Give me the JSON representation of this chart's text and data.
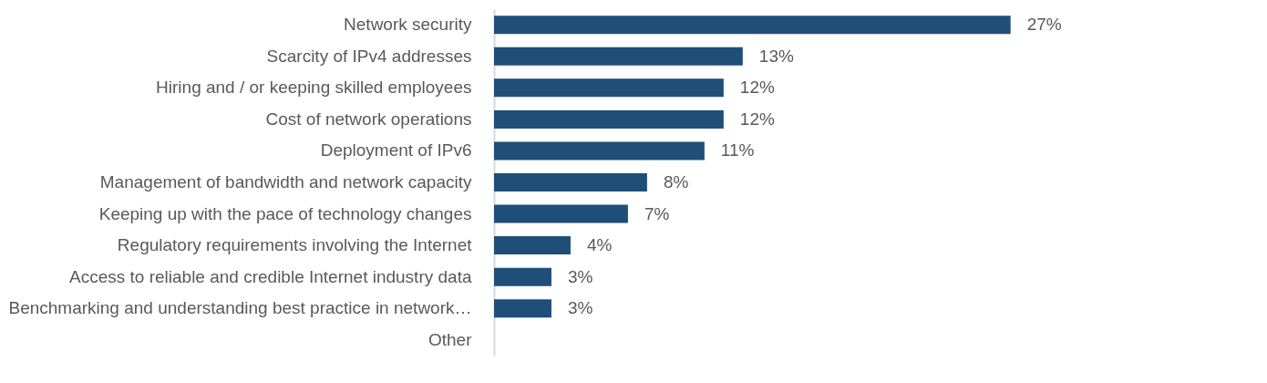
{
  "chart_data": {
    "type": "bar",
    "orientation": "horizontal",
    "categories": [
      "Network security",
      "Scarcity of IPv4 addresses",
      "Hiring and / or keeping skilled employees",
      "Cost of network operations",
      "Deployment of IPv6",
      "Management of bandwidth and network capacity",
      "Keeping up with the pace of technology changes",
      "Regulatory requirements involving the Internet",
      "Access to reliable and credible Internet industry data",
      "Benchmarking and understanding best practice in network…",
      "Other"
    ],
    "values": [
      27,
      13,
      12,
      12,
      11,
      8,
      7,
      4,
      3,
      3,
      null
    ],
    "value_labels": [
      "27%",
      "13%",
      "12%",
      "12%",
      "11%",
      "8%",
      "7%",
      "4%",
      "3%",
      "3%",
      null
    ],
    "color": "#1f4e79",
    "grid": false
  }
}
